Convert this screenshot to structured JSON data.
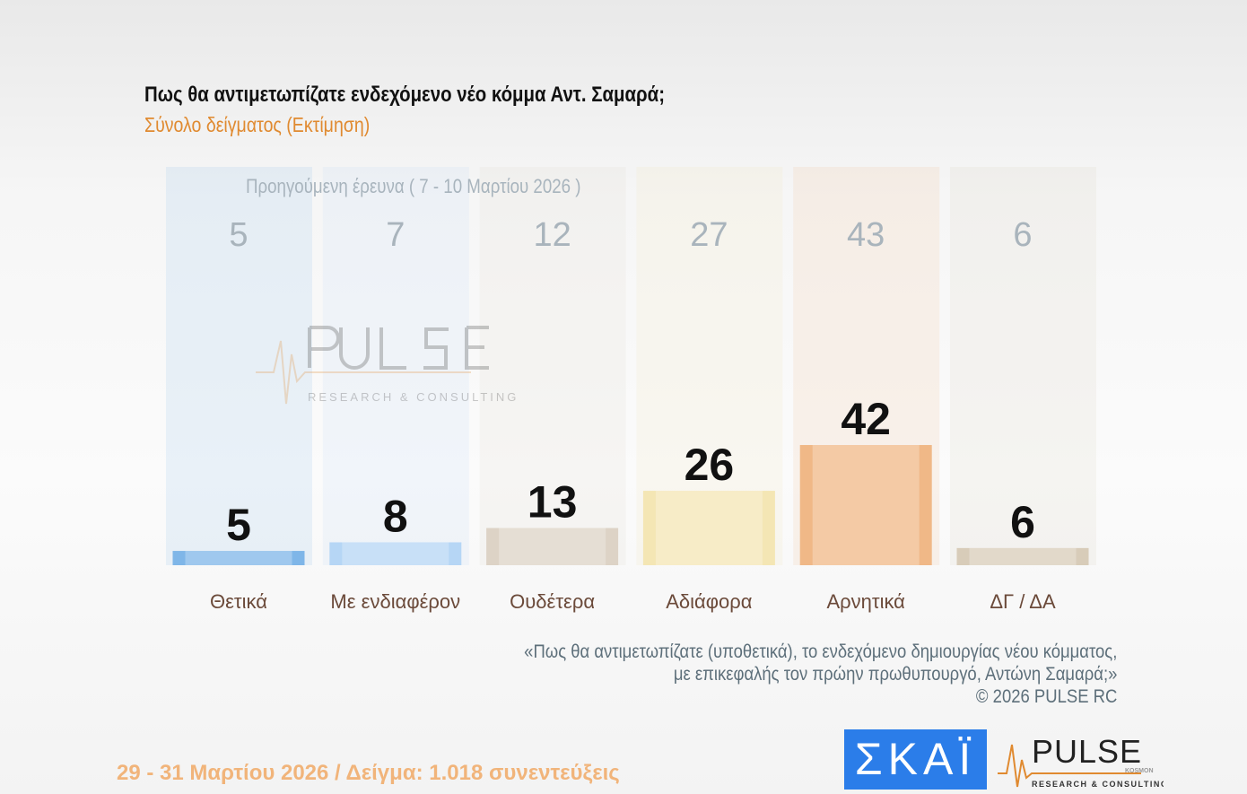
{
  "header": {
    "title": "Πως θα αντιμετωπίζατε ενδεχόμενο νέο κόμμα Αντ. Σαμαρά;",
    "subtitle": "Σύνολο δείγματος  (Εκτίμηση)"
  },
  "chart_data": {
    "type": "bar",
    "categories": [
      "Θετικά",
      "Με ενδιαφέρον",
      "Ουδέτερα",
      "Αδιάφορα",
      "Αρνητικά",
      "ΔΓ / ΔΑ"
    ],
    "series": [
      {
        "name": "Προηγούμενη έρευνα ( 7 - 10 Μαρτίου 2026 )",
        "values": [
          5,
          7,
          12,
          27,
          43,
          6
        ]
      },
      {
        "values": [
          5,
          8,
          13,
          26,
          42,
          6
        ]
      }
    ],
    "colors": [
      "#7fb6e8",
      "#b6d6f5",
      "#ddd3c6",
      "#f4e6b4",
      "#f0b887",
      "#d8ccb9"
    ],
    "grid": false
  },
  "previous_label": "Προηγούμενη έρευνα ( 7 - 10 Μαρτίου 2026 )",
  "note": {
    "line1": "«Πως θα αντιμετωπίζατε (υποθετικά), το ενδεχόμενο δημιουργίας νέου κόμματος,",
    "line2": "με επικεφαλής τον πρώην πρωθυπουργό, Αντώνη Σαμαρά;»",
    "line3": "©  2026  PULSE RC"
  },
  "footer": "29 - 31  Μαρτίου 2026  /  Δείγμα:  1.018 συνεντεύξεις",
  "logos": {
    "skai": "ΣΚΑΪ",
    "pulse": "PULSE",
    "pulse_sub": "RESEARCH & CONSULTING",
    "pulse_kosmon": "KOSMON"
  }
}
